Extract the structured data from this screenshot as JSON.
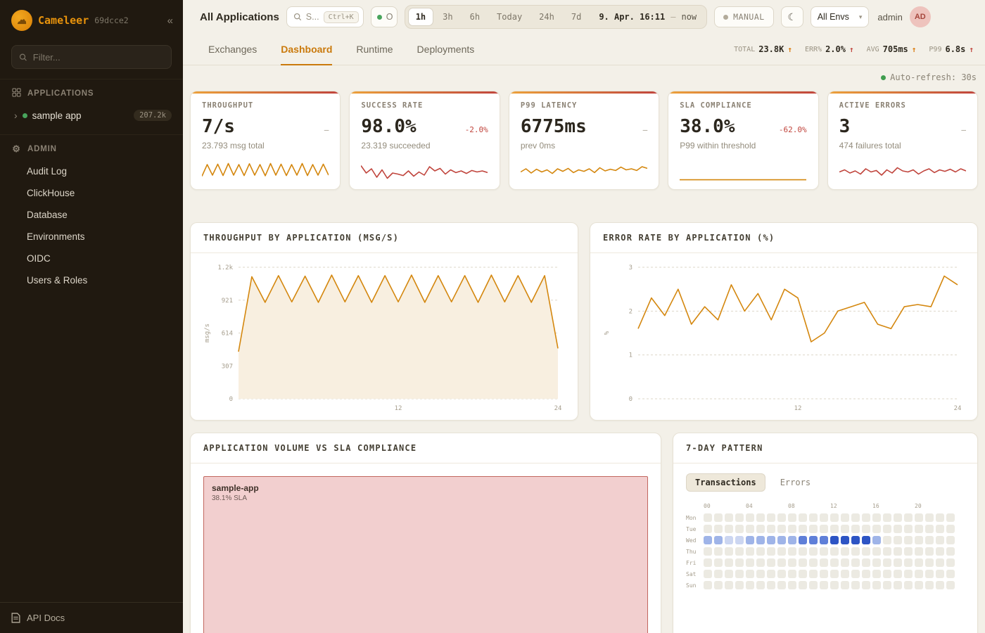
{
  "icons": {
    "collapse": "«",
    "chevron": "›",
    "gear": "⚙",
    "moon": "☾",
    "caret": "▾",
    "dot": "●"
  },
  "sidebar": {
    "brand": "Cameleer",
    "build": "69dcce2",
    "filter_placeholder": "Filter...",
    "applications_label": "APPLICATIONS",
    "app_item": {
      "label": "sample app",
      "badge": "207.2k"
    },
    "admin_label": "ADMIN",
    "admin_items": [
      "Audit Log",
      "ClickHouse",
      "Database",
      "Environments",
      "OIDC",
      "Users & Roles"
    ],
    "api_docs": "API Docs"
  },
  "topbar": {
    "title": "All Applications",
    "search_text": "S...",
    "search_kbd": "Ctrl+K",
    "status_pill": "O",
    "ranges": [
      "1h",
      "3h",
      "6h",
      "Today",
      "24h",
      "7d"
    ],
    "active_range": "1h",
    "time_start": "9. Apr. 16:11",
    "time_sep": "–",
    "time_end": "now",
    "manual": "MANUAL",
    "env": "All Envs",
    "user": "admin",
    "avatar": "AD"
  },
  "tabs": {
    "items": [
      "Exchanges",
      "Dashboard",
      "Runtime",
      "Deployments"
    ],
    "active": "Dashboard",
    "stats": [
      {
        "label": "TOTAL",
        "value": "23.8K",
        "arrow": "↑",
        "color": "#d97706"
      },
      {
        "label": "ERR%",
        "value": "2.0%",
        "arrow": "↑",
        "color": "#c0443c"
      },
      {
        "label": "AVG",
        "value": "705ms",
        "arrow": "↑",
        "color": "#d97706"
      },
      {
        "label": "P99",
        "value": "6.8s",
        "arrow": "↑",
        "color": "#c0443c"
      }
    ]
  },
  "auto_refresh": "Auto-refresh: 30s",
  "kpis": [
    {
      "label": "THROUGHPUT",
      "value": "7/s",
      "delta": "–",
      "delta_color": "#9b9484",
      "sub": "23.793 msg total",
      "spark": {
        "color": "#d4870e",
        "values": [
          0.25,
          0.8,
          0.3,
          0.82,
          0.28,
          0.85,
          0.3,
          0.8,
          0.28,
          0.84,
          0.3,
          0.8,
          0.27,
          0.85,
          0.3,
          0.82,
          0.28,
          0.8,
          0.3,
          0.85,
          0.28,
          0.8,
          0.3,
          0.82,
          0.3
        ]
      }
    },
    {
      "label": "SUCCESS RATE",
      "value": "98.0%",
      "delta": "-2.0%",
      "delta_color": "#c0443c",
      "sub": "23.319 succeeded",
      "spark": {
        "color": "#c0443c",
        "values": [
          0.75,
          0.4,
          0.6,
          0.2,
          0.55,
          0.15,
          0.4,
          0.35,
          0.28,
          0.5,
          0.25,
          0.45,
          0.3,
          0.7,
          0.5,
          0.62,
          0.35,
          0.55,
          0.42,
          0.5,
          0.38,
          0.52,
          0.45,
          0.5,
          0.42
        ]
      }
    },
    {
      "label": "P99 LATENCY",
      "value": "6775ms",
      "delta": "–",
      "delta_color": "#9b9484",
      "sub": "prev 0ms",
      "spark": {
        "color": "#d4870e",
        "values": [
          0.45,
          0.6,
          0.4,
          0.58,
          0.45,
          0.55,
          0.38,
          0.6,
          0.48,
          0.62,
          0.42,
          0.55,
          0.48,
          0.6,
          0.42,
          0.65,
          0.5,
          0.58,
          0.52,
          0.68,
          0.55,
          0.6,
          0.52,
          0.7,
          0.62
        ]
      }
    },
    {
      "label": "SLA COMPLIANCE",
      "value": "38.0%",
      "delta": "-62.0%",
      "delta_color": "#c0443c",
      "sub": "P99 within threshold",
      "spark": {
        "color": "#d4870e",
        "values": [
          0.08,
          0.08
        ]
      }
    },
    {
      "label": "ACTIVE ERRORS",
      "value": "3",
      "delta": "–",
      "delta_color": "#9b9484",
      "sub": "474 failures total",
      "spark": {
        "color": "#c0443c",
        "values": [
          0.45,
          0.55,
          0.4,
          0.5,
          0.35,
          0.6,
          0.45,
          0.52,
          0.3,
          0.55,
          0.4,
          0.65,
          0.5,
          0.45,
          0.55,
          0.35,
          0.5,
          0.6,
          0.42,
          0.55,
          0.48,
          0.58,
          0.45,
          0.6,
          0.5
        ]
      }
    }
  ],
  "chart_data": [
    {
      "type": "line",
      "title": "THROUGHPUT BY APPLICATION (MSG/S)",
      "ylabel": "msg/s",
      "xlim": [
        0,
        24
      ],
      "ylim": [
        0,
        1228
      ],
      "y_ticks": [
        {
          "v": 1228,
          "label": "1.2k"
        },
        {
          "v": 921,
          "label": "921"
        },
        {
          "v": 614,
          "label": "614"
        },
        {
          "v": 307,
          "label": "307"
        },
        {
          "v": 0,
          "label": "0"
        }
      ],
      "x_ticks": [
        {
          "v": 12,
          "label": "12"
        },
        {
          "v": 24,
          "label": "24"
        }
      ],
      "values": [
        440,
        1140,
        900,
        1150,
        905,
        1145,
        900,
        1155,
        905,
        1150,
        900,
        1150,
        905,
        1155,
        900,
        1150,
        905,
        1150,
        900,
        1155,
        905,
        1150,
        900,
        1150,
        470
      ],
      "color": "#d4870e",
      "fill": "#f8efe0"
    },
    {
      "type": "line",
      "title": "ERROR RATE BY APPLICATION (%)",
      "ylabel": "%",
      "xlim": [
        0,
        24
      ],
      "ylim": [
        0,
        3
      ],
      "y_ticks": [
        {
          "v": 3,
          "label": "3"
        },
        {
          "v": 2,
          "label": "2"
        },
        {
          "v": 1,
          "label": "1"
        },
        {
          "v": 0,
          "label": "0"
        }
      ],
      "x_ticks": [
        {
          "v": 12,
          "label": "12"
        },
        {
          "v": 24,
          "label": "24"
        }
      ],
      "values": [
        1.6,
        2.3,
        1.9,
        2.5,
        1.7,
        2.1,
        1.8,
        2.6,
        2.0,
        2.4,
        1.8,
        2.5,
        2.3,
        1.3,
        1.5,
        2.0,
        2.1,
        2.2,
        1.7,
        1.6,
        2.1,
        2.15,
        2.1,
        2.8,
        2.6
      ],
      "color": "#d4870e",
      "fill": null
    }
  ],
  "treemap": {
    "title": "APPLICATION VOLUME VS SLA COMPLIANCE",
    "cell": {
      "name": "sample-app",
      "sla": "38.1% SLA"
    }
  },
  "pattern": {
    "title": "7-DAY PATTERN",
    "toggles": [
      "Transactions",
      "Errors"
    ],
    "active_toggle": "Transactions",
    "hours": [
      "00",
      "04",
      "08",
      "12",
      "16",
      "20"
    ],
    "days": [
      "Mon",
      "Tue",
      "Wed",
      "Thu",
      "Fri",
      "Sat",
      "Sun"
    ],
    "colors": [
      "#eceae2",
      "#ccd6f1",
      "#9fb4e8",
      "#5f7fd8",
      "#2d54c4"
    ],
    "grid": [
      [
        0,
        0,
        0,
        0,
        0,
        0,
        0,
        0,
        0,
        0,
        0,
        0,
        0,
        0,
        0,
        0,
        0,
        0,
        0,
        0,
        0,
        0,
        0,
        0
      ],
      [
        0,
        0,
        0,
        0,
        0,
        0,
        0,
        0,
        0,
        0,
        0,
        0,
        0,
        0,
        0,
        0,
        0,
        0,
        0,
        0,
        0,
        0,
        0,
        0
      ],
      [
        2,
        2,
        1,
        1,
        2,
        2,
        2,
        2,
        2,
        3,
        3,
        3,
        4,
        4,
        4,
        4,
        2,
        0,
        0,
        0,
        0,
        0,
        0,
        0
      ],
      [
        0,
        0,
        0,
        0,
        0,
        0,
        0,
        0,
        0,
        0,
        0,
        0,
        0,
        0,
        0,
        0,
        0,
        0,
        0,
        0,
        0,
        0,
        0,
        0
      ],
      [
        0,
        0,
        0,
        0,
        0,
        0,
        0,
        0,
        0,
        0,
        0,
        0,
        0,
        0,
        0,
        0,
        0,
        0,
        0,
        0,
        0,
        0,
        0,
        0
      ],
      [
        0,
        0,
        0,
        0,
        0,
        0,
        0,
        0,
        0,
        0,
        0,
        0,
        0,
        0,
        0,
        0,
        0,
        0,
        0,
        0,
        0,
        0,
        0,
        0
      ],
      [
        0,
        0,
        0,
        0,
        0,
        0,
        0,
        0,
        0,
        0,
        0,
        0,
        0,
        0,
        0,
        0,
        0,
        0,
        0,
        0,
        0,
        0,
        0,
        0
      ]
    ]
  }
}
